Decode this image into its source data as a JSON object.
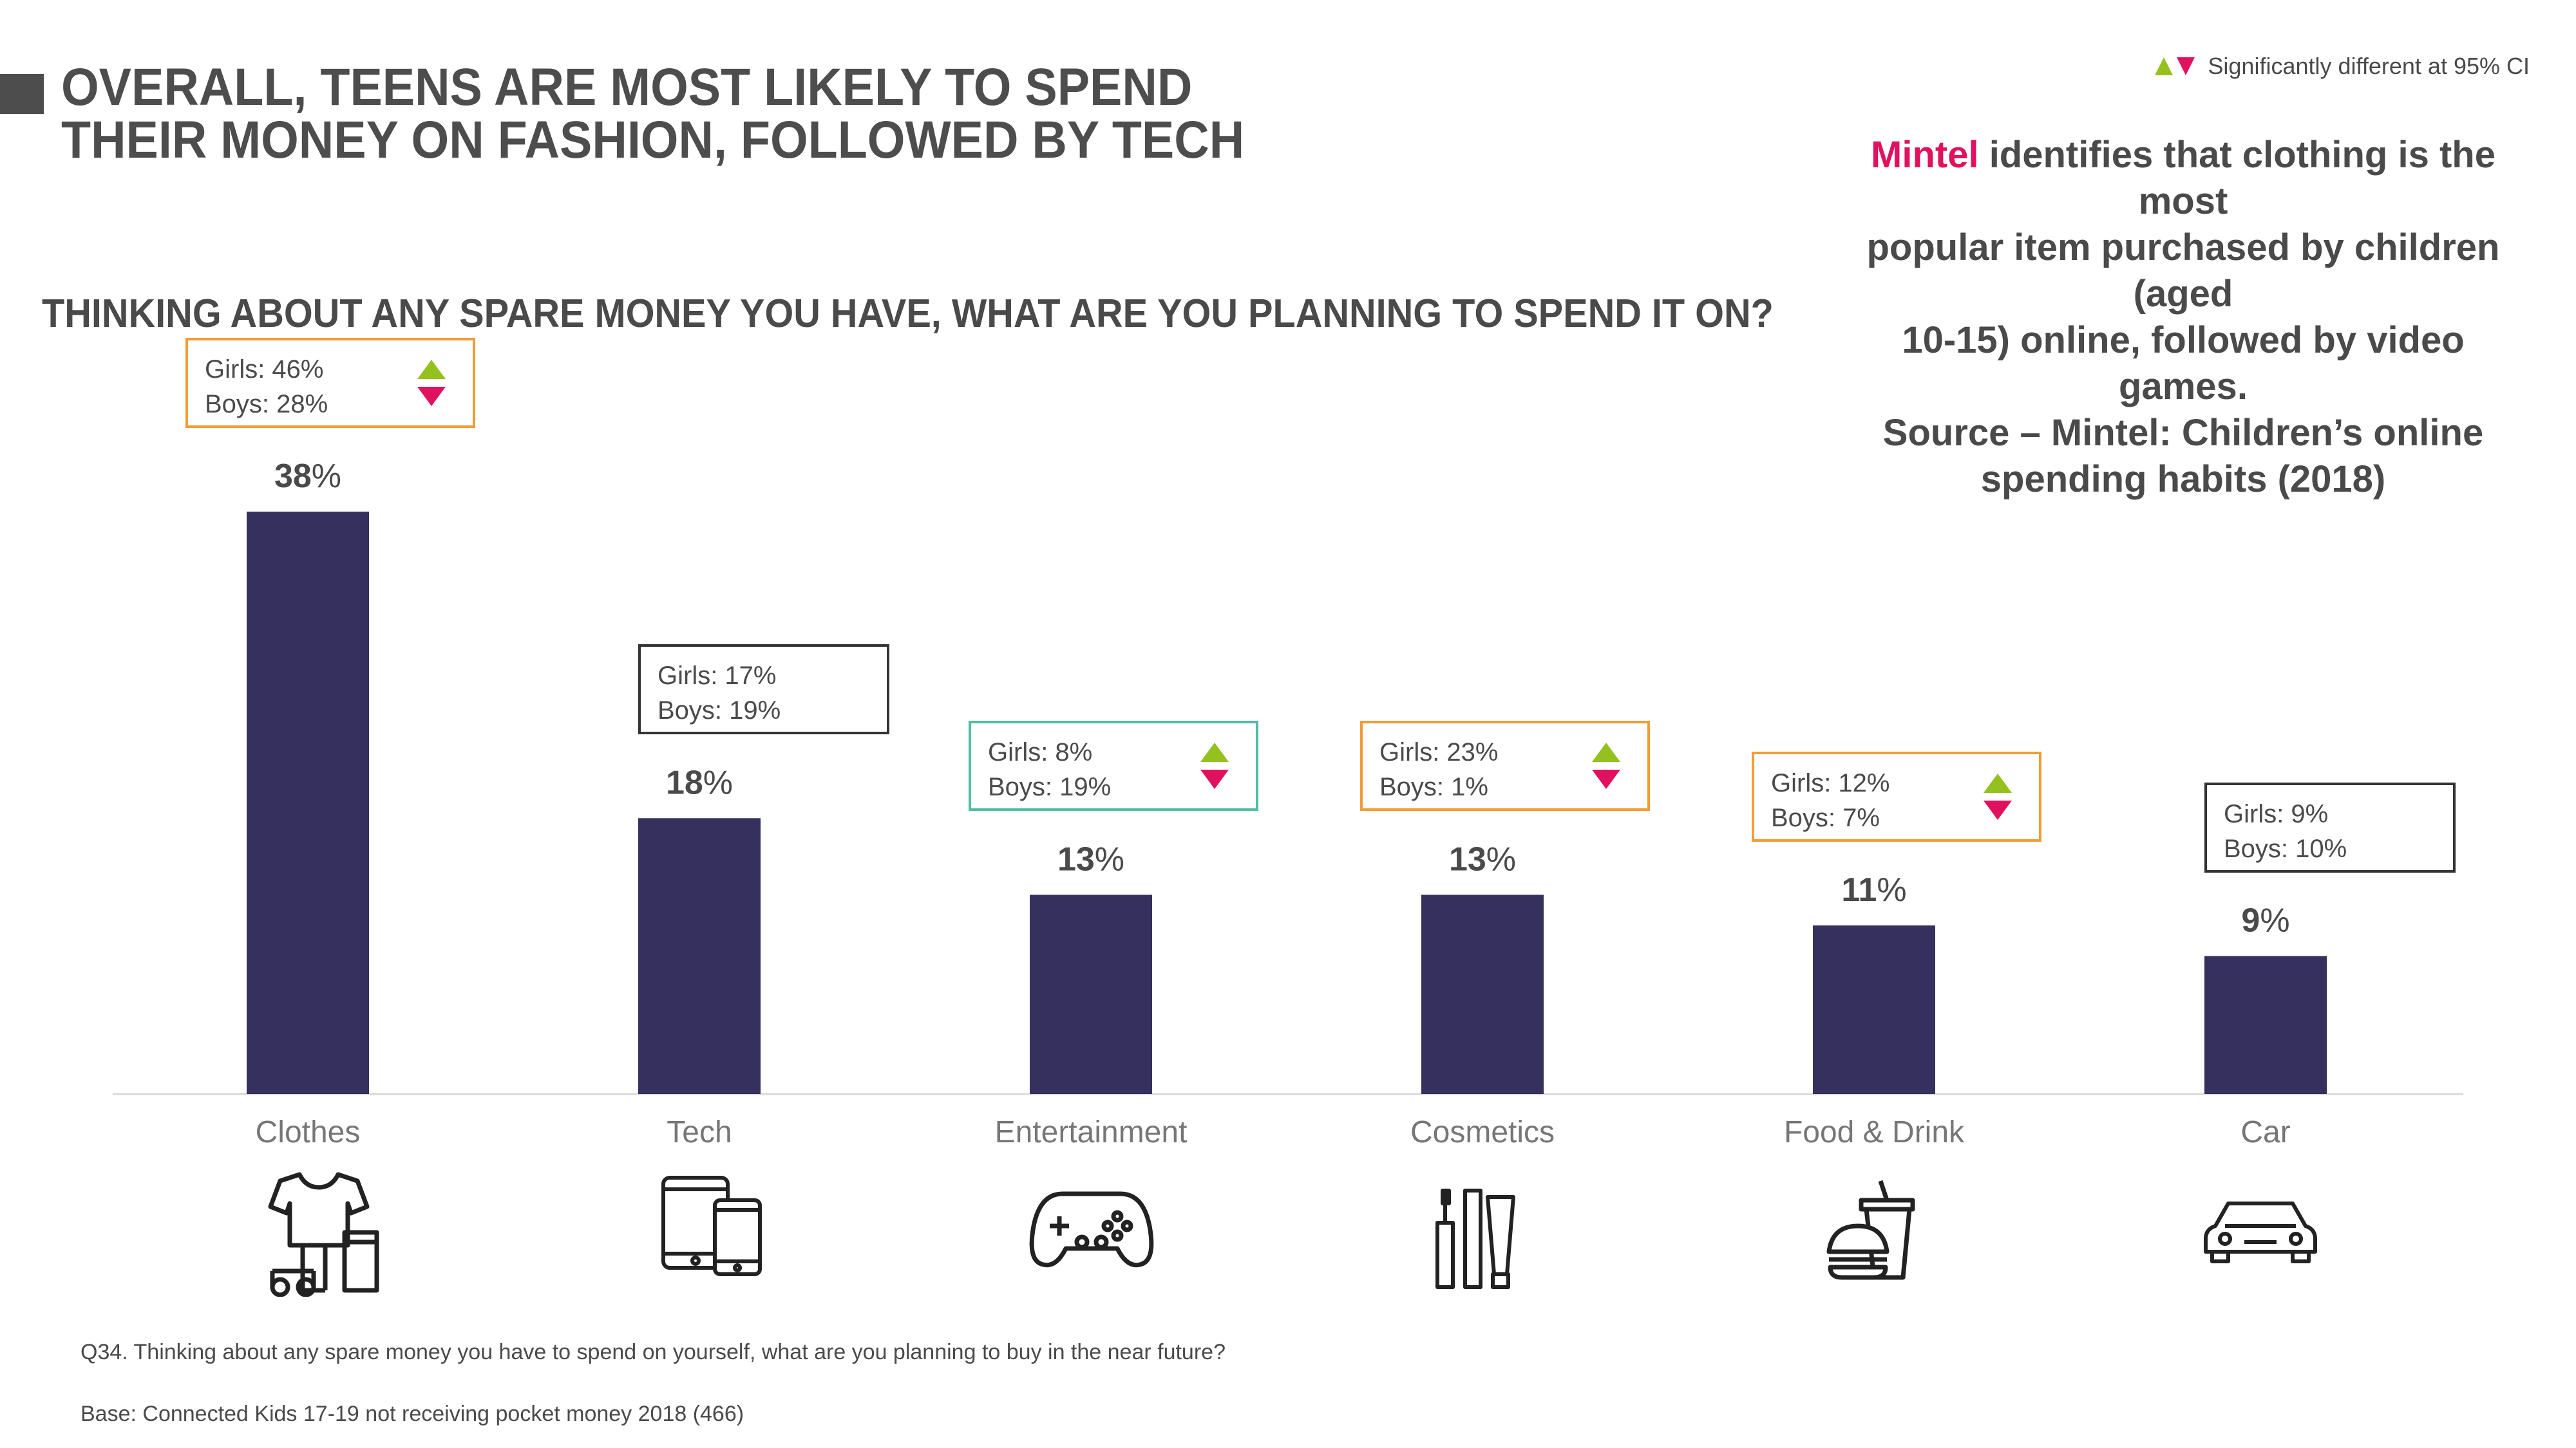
{
  "header": {
    "title_line1": "OVERALL, TEENS ARE MOST LIKELY TO SPEND",
    "title_line2": "THEIR MONEY ON FASHION, FOLLOWED BY TECH",
    "legend_text": "Significantly different at 95% CI"
  },
  "mintel_note": {
    "brand": "Mintel",
    "line1_rest": " identifies that clothing is the most",
    "line2": "popular item purchased by children (aged",
    "line3": "10-15) online, followed by video games.",
    "line4": "Source – Mintel: Children’s online",
    "line5": "spending habits (2018)"
  },
  "subtitle": "THINKING ABOUT ANY SPARE MONEY YOU HAVE, WHAT ARE YOU PLANNING TO SPEND IT ON?",
  "colors": {
    "bar": "#35305d",
    "up": "#95c11f",
    "down": "#e0115f",
    "brand": "#e0115f",
    "box_sig": "#f39c35",
    "box_teal": "#4dbfa4",
    "box_plain": "#333333"
  },
  "chart_data": {
    "type": "bar",
    "title": "THINKING ABOUT ANY SPARE MONEY YOU HAVE, WHAT ARE YOU PLANNING TO SPEND IT ON?",
    "categories": [
      "Clothes",
      "Tech",
      "Entertainment",
      "Cosmetics",
      "Food & Drink",
      "Car"
    ],
    "values": [
      38,
      18,
      13,
      13,
      11,
      9
    ],
    "value_labels": [
      "38",
      "18",
      "13",
      "13",
      "11",
      "9"
    ],
    "unit": "%",
    "ylim": [
      0,
      38
    ],
    "grid": false,
    "breakdowns": [
      {
        "girls": "Girls: 46%",
        "boys": "Boys: 28%",
        "significant": true,
        "box": "sig"
      },
      {
        "girls": "Girls: 17%",
        "boys": "Boys: 19%",
        "significant": false,
        "box": "plain"
      },
      {
        "girls": "Girls: 8%",
        "boys": "Boys: 19%",
        "significant": true,
        "box": "teal"
      },
      {
        "girls": "Girls: 23%",
        "boys": "Boys: 1%",
        "significant": true,
        "box": "sig"
      },
      {
        "girls": "Girls: 12%",
        "boys": "Boys: 7%",
        "significant": true,
        "box": "sig"
      },
      {
        "girls": "Girls: 9%",
        "boys": "Boys: 10%",
        "significant": false,
        "box": "plain"
      }
    ],
    "icons": [
      "clothes-icon",
      "tech-icon",
      "gamepad-icon",
      "cosmetics-icon",
      "food-drink-icon",
      "car-icon"
    ]
  },
  "footnotes": {
    "question": "Q34. Thinking about any spare money you have to spend on yourself, what are you planning to buy in the near future?",
    "base": "Base: Connected Kids 17-19 not receiving pocket money 2018 (466)"
  }
}
